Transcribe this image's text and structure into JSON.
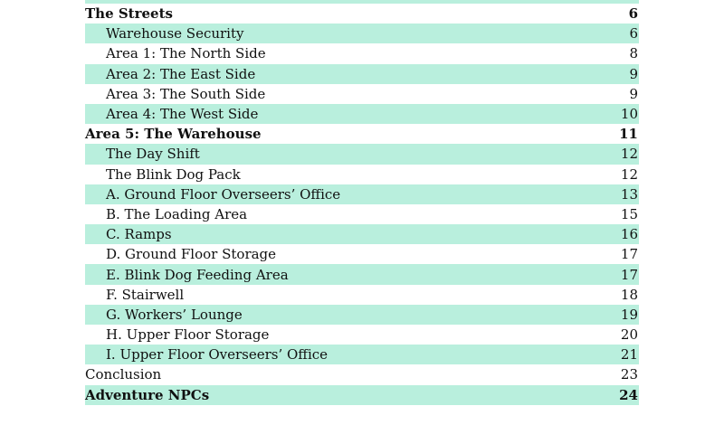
{
  "toc": [
    {
      "title": "",
      "page": "",
      "level": 1
    },
    {
      "title": "The Streets",
      "page": "6",
      "level": 0
    },
    {
      "title": "Warehouse Security",
      "page": "6",
      "level": 1
    },
    {
      "title": "Area 1: The North Side",
      "page": "8",
      "level": 1
    },
    {
      "title": "Area 2: The East Side",
      "page": "9",
      "level": 1
    },
    {
      "title": "Area 3: The South Side",
      "page": "9",
      "level": 1
    },
    {
      "title": "Area 4: The West Side",
      "page": "10",
      "level": 1
    },
    {
      "title": "Area 5: The Warehouse",
      "page": "11",
      "level": 0
    },
    {
      "title": "The Day Shift",
      "page": "12",
      "level": 1
    },
    {
      "title": "The Blink Dog Pack",
      "page": "12",
      "level": 1
    },
    {
      "title": "A. Ground Floor Overseers’ Office",
      "page": "13",
      "level": 1
    },
    {
      "title": "B. The Loading Area",
      "page": "15",
      "level": 1
    },
    {
      "title": "C. Ramps",
      "page": "16",
      "level": 1
    },
    {
      "title": "D. Ground Floor Storage",
      "page": "17",
      "level": 1
    },
    {
      "title": "E. Blink Dog Feeding Area",
      "page": "17",
      "level": 1
    },
    {
      "title": "F. Stairwell",
      "page": "18",
      "level": 1
    },
    {
      "title": "G. Workers’ Lounge",
      "page": "19",
      "level": 1
    },
    {
      "title": "H. Upper Floor Storage",
      "page": "20",
      "level": 1
    },
    {
      "title": "I. Upper Floor Overseers’ Office",
      "page": "21",
      "level": 1
    },
    {
      "title": "Conclusion",
      "page": "23",
      "level": 2
    },
    {
      "title": "Adventure NPCs",
      "page": "24",
      "level": 0
    },
    {
      "title": "",
      "page": "",
      "level": 1
    }
  ],
  "colors": {
    "stripe": "#b9efdd"
  }
}
